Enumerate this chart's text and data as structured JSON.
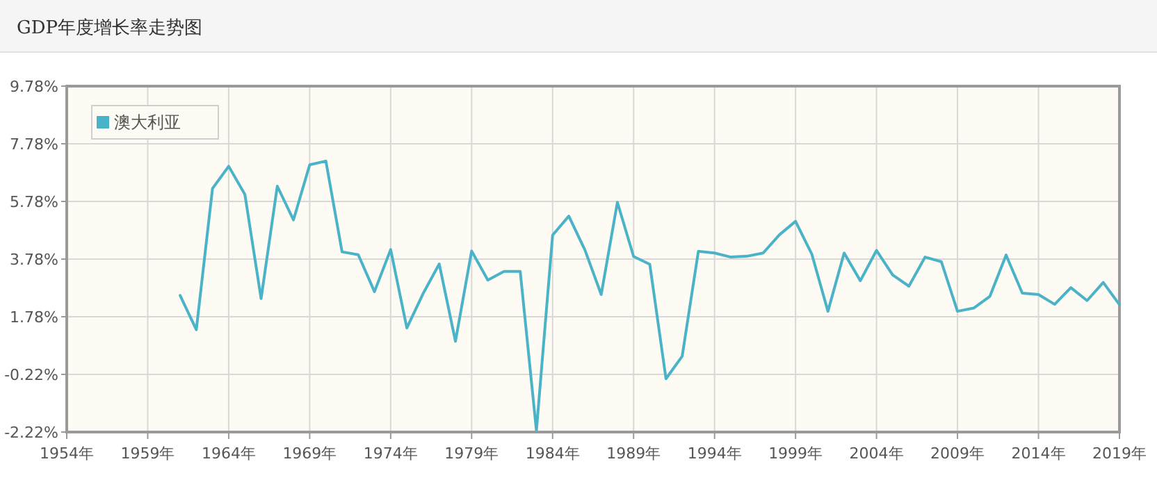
{
  "chart_data": {
    "type": "line",
    "title": "GDP年度增长率走势图",
    "x": [
      1961,
      1962,
      1963,
      1964,
      1965,
      1966,
      1967,
      1968,
      1969,
      1970,
      1971,
      1972,
      1973,
      1974,
      1975,
      1976,
      1977,
      1978,
      1979,
      1980,
      1981,
      1982,
      1983,
      1984,
      1985,
      1986,
      1987,
      1988,
      1989,
      1990,
      1991,
      1992,
      1993,
      1994,
      1995,
      1996,
      1997,
      1998,
      1999,
      2000,
      2001,
      2002,
      2003,
      2004,
      2005,
      2006,
      2007,
      2008,
      2009,
      2010,
      2011,
      2012,
      2013,
      2014,
      2015,
      2016,
      2017,
      2018,
      2019
    ],
    "series": [
      {
        "name": "澳大利亚",
        "color": "#4bb3c8",
        "values": [
          2.52,
          1.33,
          6.23,
          7.0,
          6.02,
          2.41,
          6.31,
          5.14,
          7.05,
          7.18,
          4.03,
          3.93,
          2.65,
          4.11,
          1.39,
          2.58,
          3.61,
          0.93,
          4.06,
          3.05,
          3.35,
          3.35,
          -2.17,
          4.61,
          5.27,
          4.09,
          2.55,
          5.75,
          3.87,
          3.6,
          -0.37,
          0.41,
          4.05,
          3.99,
          3.85,
          3.88,
          3.99,
          4.62,
          5.09,
          3.96,
          1.97,
          3.99,
          3.03,
          4.08,
          3.23,
          2.84,
          3.85,
          3.69,
          1.97,
          2.08,
          2.49,
          3.92,
          2.6,
          2.55,
          2.21,
          2.79,
          2.34,
          2.97,
          2.2
        ]
      }
    ],
    "xlim": [
      1954,
      2019
    ],
    "xticks": [
      {
        "value": 1954,
        "label": "1954年"
      },
      {
        "value": 1959,
        "label": "1959年"
      },
      {
        "value": 1964,
        "label": "1964年"
      },
      {
        "value": 1969,
        "label": "1969年"
      },
      {
        "value": 1974,
        "label": "1974年"
      },
      {
        "value": 1979,
        "label": "1979年"
      },
      {
        "value": 1984,
        "label": "1984年"
      },
      {
        "value": 1989,
        "label": "1989年"
      },
      {
        "value": 1994,
        "label": "1994年"
      },
      {
        "value": 1999,
        "label": "1999年"
      },
      {
        "value": 2004,
        "label": "2004年"
      },
      {
        "value": 2009,
        "label": "2009年"
      },
      {
        "value": 2014,
        "label": "2014年"
      },
      {
        "value": 2019,
        "label": "2019年"
      }
    ],
    "ylim": [
      -2.22,
      9.78
    ],
    "yticks": [
      {
        "value": -2.22,
        "label": "-2.22%"
      },
      {
        "value": -0.22,
        "label": "-0.22%"
      },
      {
        "value": 1.78,
        "label": "1.78%"
      },
      {
        "value": 3.78,
        "label": "3.78%"
      },
      {
        "value": 5.78,
        "label": "5.78%"
      },
      {
        "value": 7.78,
        "label": "7.78%"
      },
      {
        "value": 9.78,
        "label": "9.78%"
      }
    ],
    "grid": true,
    "legend": "top left",
    "marker": "none",
    "line_style": "solid"
  }
}
